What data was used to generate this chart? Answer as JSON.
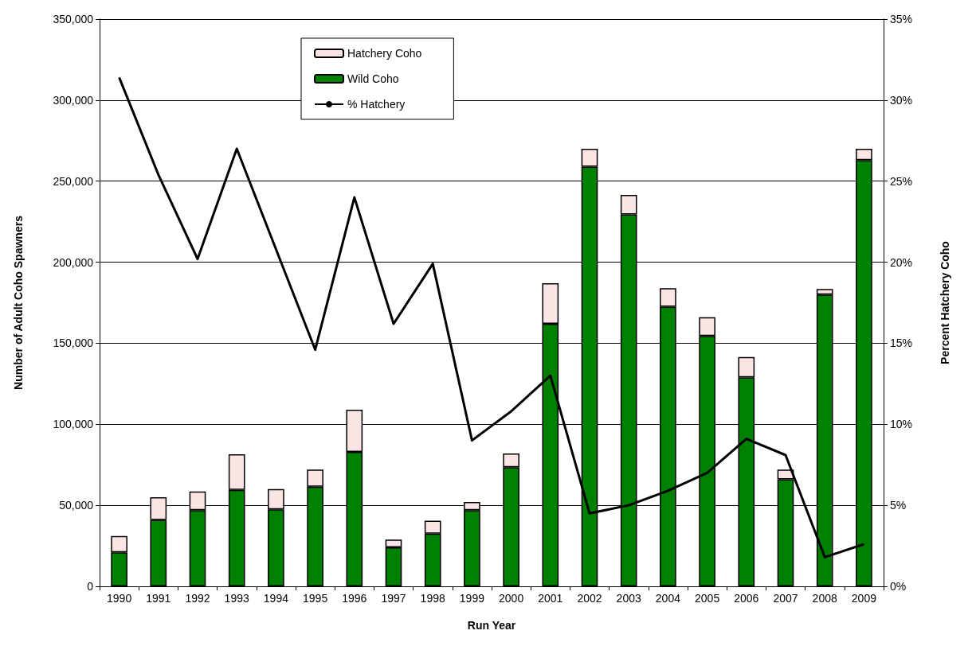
{
  "chart_data": {
    "type": "bar",
    "stacked": true,
    "xlabel": "Run Year",
    "ylabel": "Number of Adult Coho Spawners",
    "y2label": "Percent Hatchery Coho",
    "categories": [
      "1990",
      "1991",
      "1992",
      "1993",
      "1994",
      "1995",
      "1996",
      "1997",
      "1998",
      "1999",
      "2000",
      "2001",
      "2002",
      "2003",
      "2004",
      "2005",
      "2006",
      "2007",
      "2008",
      "2009"
    ],
    "series": [
      {
        "name": "Wild Coho",
        "color": "#008000",
        "values": [
          21000,
          41000,
          47000,
          59500,
          47500,
          61500,
          83000,
          24000,
          32500,
          47000,
          73500,
          162000,
          259000,
          229500,
          172500,
          154500,
          129000,
          66000,
          180000,
          263000
        ]
      },
      {
        "name": "Hatchery Coho",
        "color": "#fbe4e4",
        "values": [
          10000,
          14000,
          11500,
          22000,
          12500,
          10500,
          26000,
          4800,
          8000,
          5000,
          8500,
          25000,
          11000,
          12000,
          11500,
          11500,
          12500,
          6000,
          3500,
          7000
        ]
      },
      {
        "name": "% Hatchery",
        "type": "line",
        "axis": "y2",
        "color": "#000000",
        "values": [
          31.4,
          25.4,
          20.2,
          27.0,
          20.8,
          14.6,
          24.0,
          16.2,
          19.9,
          9.0,
          10.8,
          13.0,
          4.5,
          5.0,
          5.9,
          7.0,
          9.1,
          8.1,
          1.8,
          2.6
        ]
      }
    ],
    "ylim": [
      0,
      350000
    ],
    "yticks": [
      0,
      {
        "value": 50000,
        "label": "50,000"
      },
      {
        "value": 100000,
        "label": "100,000"
      },
      {
        "value": 150000,
        "label": "150,000"
      },
      {
        "value": 200000,
        "label": "200,000"
      },
      {
        "value": 250000,
        "label": "250,000"
      },
      {
        "value": 300000,
        "label": "300,000"
      },
      {
        "value": 350000,
        "label": "350,000"
      }
    ],
    "y2lim": [
      0,
      35
    ],
    "y2ticks": [
      {
        "value": 0,
        "label": "0%"
      },
      {
        "value": 5,
        "label": "5%"
      },
      {
        "value": 10,
        "label": "10%"
      },
      {
        "value": 15,
        "label": "15%"
      },
      {
        "value": 20,
        "label": "20%"
      },
      {
        "value": 25,
        "label": "25%"
      },
      {
        "value": 30,
        "label": "30%"
      },
      {
        "value": 35,
        "label": "35%"
      }
    ],
    "grid": "y",
    "legend": "top left",
    "marker": "none",
    "line_style": "solid"
  }
}
